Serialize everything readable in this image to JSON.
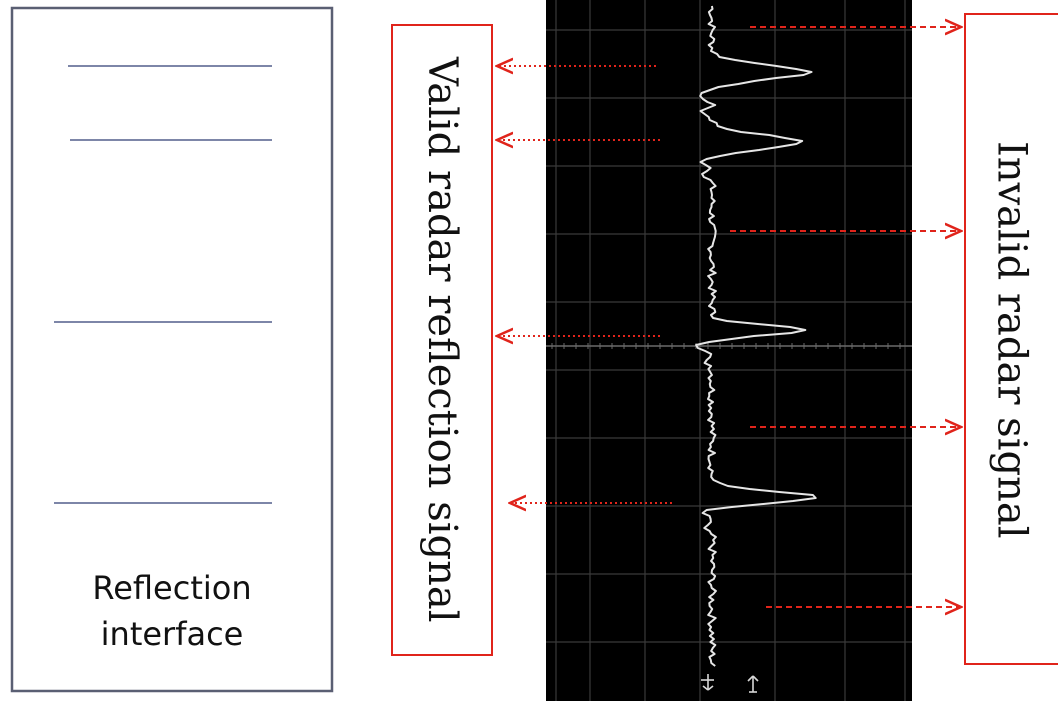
{
  "panels": {
    "interface_box": {
      "label_line1": "Reflection",
      "label_line2": "interface",
      "border_color": "#5a5f73",
      "line_color": "#7d86a8"
    },
    "valid_box": {
      "label": "Valid radar reflection signal",
      "border_color": "#e0241b"
    },
    "invalid_box": {
      "label": "Invalid radar signal",
      "border_color": "#e0241b"
    }
  },
  "oscilloscope": {
    "background": "#000000",
    "grid_color": "#3a3a3a",
    "trace_color": "#e6e6e6",
    "marker_icons": [
      "down-arrow-marker-icon",
      "up-arrow-marker-icon"
    ]
  },
  "arrows": {
    "color": "#e0241b",
    "valid_style": "dotted",
    "invalid_style": "dashed"
  }
}
